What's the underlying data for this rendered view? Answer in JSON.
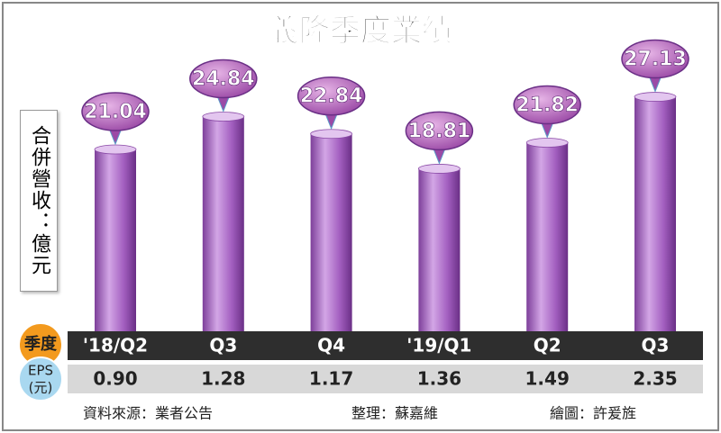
{
  "chart_data": {
    "type": "bar",
    "title": "義隆季度業績",
    "y_label": "合併營收：億元",
    "categories": [
      "'18/Q2",
      "Q3",
      "Q4",
      "'19/Q1",
      "Q2",
      "Q3"
    ],
    "values": [
      21.04,
      24.84,
      22.84,
      18.81,
      21.82,
      27.13
    ],
    "color": "#a35fc0",
    "category_row_label": "季度",
    "eps_row_label": [
      "EPS",
      "(元)"
    ],
    "eps": [
      "0.90",
      "1.28",
      "1.17",
      "1.36",
      "1.49",
      "2.35"
    ],
    "footer": [
      "資料來源：業者公告",
      "整理：蘇嘉維",
      "繪圖：許爰旌"
    ]
  }
}
